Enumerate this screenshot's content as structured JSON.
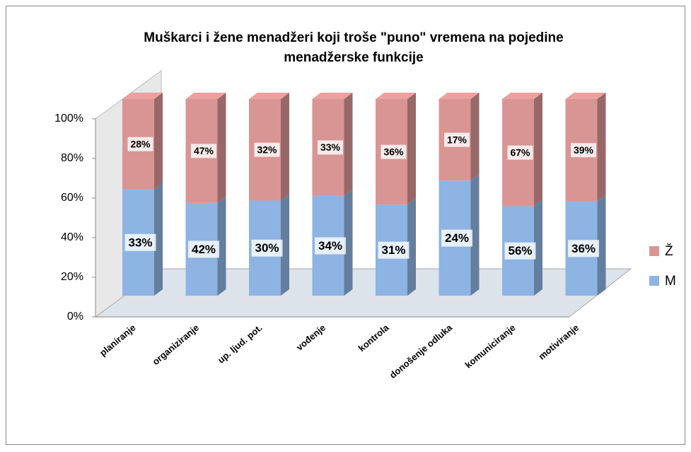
{
  "chart_data": {
    "type": "bar",
    "stacking": "percent",
    "title": "Muškarci i žene menadžeri koji troše \"puno\"  vremena na pojedine menadžerske funkcije",
    "categories": [
      "planiranje",
      "organiziranje",
      "up. ljud. pot.",
      "vođenje",
      "kontrola",
      "donošenje odluka",
      "komuniciranje",
      "motiviranje"
    ],
    "series": [
      {
        "name": "M",
        "color": "#8db4e2",
        "values": [
          33,
          42,
          30,
          34,
          31,
          24,
          56,
          36
        ],
        "value_labels": [
          "33%",
          "42%",
          "30%",
          "34%",
          "31%",
          "24%",
          "56%",
          "36%"
        ]
      },
      {
        "name": "Ž",
        "color": "#d99594",
        "values": [
          28,
          47,
          32,
          33,
          36,
          17,
          67,
          39
        ],
        "value_labels": [
          "28%",
          "47%",
          "32%",
          "33%",
          "36%",
          "17%",
          "67%",
          "39%"
        ]
      }
    ],
    "ylim": [
      0,
      100
    ],
    "yticks": [
      {
        "value": 0,
        "label": "0%"
      },
      {
        "value": 20,
        "label": "20%"
      },
      {
        "value": 40,
        "label": "40%"
      },
      {
        "value": 60,
        "label": "60%"
      },
      {
        "value": 80,
        "label": "80%"
      },
      {
        "value": 100,
        "label": "100%"
      }
    ],
    "grid": false,
    "legend": "right"
  }
}
